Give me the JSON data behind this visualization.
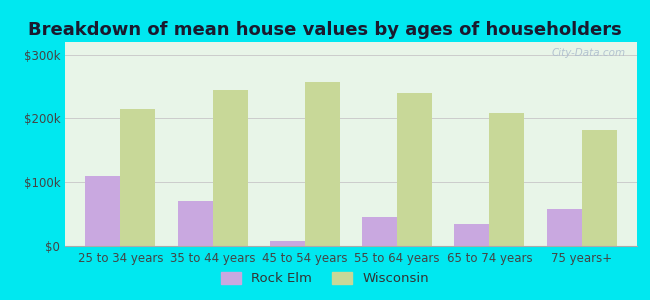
{
  "title": "Breakdown of mean house values by ages of householders",
  "categories": [
    "25 to 34 years",
    "35 to 44 years",
    "45 to 54 years",
    "55 to 64 years",
    "65 to 74 years",
    "75 years+"
  ],
  "rock_elm": [
    110000,
    70000,
    8000,
    45000,
    35000,
    58000
  ],
  "wisconsin": [
    215000,
    245000,
    258000,
    240000,
    208000,
    182000
  ],
  "rock_elm_color": "#c9a8e0",
  "wisconsin_color": "#c8d898",
  "background_outer": "#00e8f0",
  "background_inner_top": "#e8f5e8",
  "background_inner_bottom": "#f8fff8",
  "yticks": [
    0,
    100000,
    200000,
    300000
  ],
  "ytick_labels": [
    "$0",
    "$100k",
    "$200k",
    "$300k"
  ],
  "ylim": [
    0,
    320000
  ],
  "bar_width": 0.38,
  "legend_rock_elm": "Rock Elm",
  "legend_wisconsin": "Wisconsin",
  "title_fontsize": 13,
  "tick_fontsize": 8.5,
  "legend_fontsize": 9.5,
  "watermark": "City-Data.com"
}
